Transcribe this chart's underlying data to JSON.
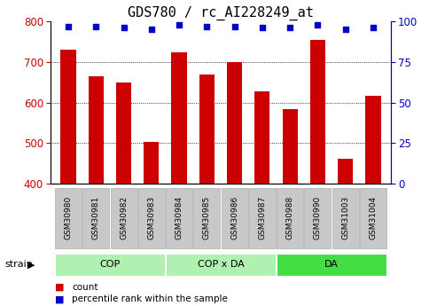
{
  "title": "GDS780 / rc_AI228249_at",
  "categories": [
    "GSM30980",
    "GSM30981",
    "GSM30982",
    "GSM30983",
    "GSM30984",
    "GSM30985",
    "GSM30986",
    "GSM30987",
    "GSM30988",
    "GSM30990",
    "GSM31003",
    "GSM31004"
  ],
  "bar_values": [
    730,
    665,
    650,
    503,
    724,
    670,
    700,
    627,
    583,
    755,
    462,
    617
  ],
  "dot_values_pct": [
    97,
    97,
    96,
    95,
    98,
    97,
    97,
    96,
    96,
    98,
    95,
    96
  ],
  "bar_color": "#cc0000",
  "dot_color": "#0000cc",
  "ylim_left": [
    400,
    800
  ],
  "ylim_right": [
    0,
    100
  ],
  "yticks_left": [
    400,
    500,
    600,
    700,
    800
  ],
  "yticks_right": [
    0,
    25,
    50,
    75,
    100
  ],
  "group_defs": [
    {
      "label": "COP",
      "indices": [
        0,
        1,
        2,
        3
      ],
      "color": "#b0f0b0"
    },
    {
      "label": "COP x DA",
      "indices": [
        4,
        5,
        6,
        7
      ],
      "color": "#b0f0b0"
    },
    {
      "label": "DA",
      "indices": [
        8,
        9,
        10,
        11
      ],
      "color": "#44dd44"
    }
  ],
  "tick_bg_color": "#c8c8c8",
  "tick_border_color": "#a0a0a0",
  "xlabel_group": "strain",
  "legend_bar_label": "count",
  "legend_dot_label": "percentile rank within the sample",
  "title_fontsize": 11,
  "axis_color_left": "#cc0000",
  "axis_color_right": "#0000cc",
  "grid_color": "#000000",
  "grid_linestyle": ":",
  "grid_linewidth": 0.6,
  "bar_width": 0.55,
  "xlim": [
    -0.65,
    11.65
  ]
}
